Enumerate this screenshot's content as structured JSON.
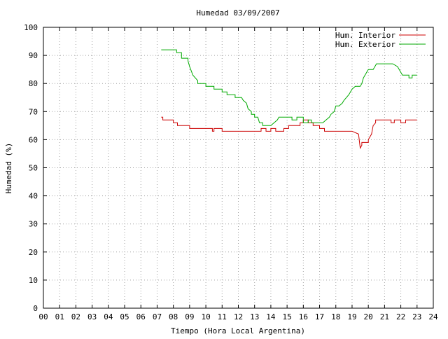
{
  "chart_data": {
    "type": "line",
    "title": "Humedad 03/09/2007",
    "xlabel": "Tiempo (Hora Local Argentina)",
    "ylabel": "Humedad (%)",
    "xlim": [
      0,
      24
    ],
    "ylim": [
      0,
      100
    ],
    "x_ticks": [
      "00",
      "01",
      "02",
      "03",
      "04",
      "05",
      "06",
      "07",
      "08",
      "09",
      "10",
      "11",
      "12",
      "13",
      "14",
      "15",
      "16",
      "17",
      "18",
      "19",
      "20",
      "21",
      "22",
      "23",
      "24"
    ],
    "y_ticks": [
      "0",
      "10",
      "20",
      "30",
      "40",
      "50",
      "60",
      "70",
      "80",
      "90",
      "100"
    ],
    "grid": true,
    "legend_position": "top-right",
    "series": [
      {
        "name": "Hum. Interior",
        "color": "#cc0000",
        "x": [
          7.25,
          7.35,
          7.35,
          7.45,
          7.45,
          8.0,
          8.0,
          8.25,
          8.25,
          8.5,
          8.5,
          9.0,
          9.0,
          9.6,
          9.6,
          10.4,
          10.4,
          10.5,
          10.5,
          11.0,
          11.0,
          11.6,
          11.6,
          12.4,
          12.4,
          13.0,
          13.0,
          13.4,
          13.4,
          13.7,
          13.7,
          14.0,
          14.0,
          14.3,
          14.3,
          14.8,
          14.8,
          15.1,
          15.1,
          15.4,
          15.4,
          15.8,
          15.8,
          16.0,
          16.0,
          16.3,
          16.3,
          16.6,
          16.6,
          17.0,
          17.0,
          17.3,
          17.3,
          19.0,
          19.0,
          19.4,
          19.5,
          19.6,
          19.6,
          20.0,
          20.0,
          20.2,
          20.3,
          20.45,
          20.45,
          21.4,
          21.4,
          21.6,
          21.6,
          22.0,
          22.0,
          22.3,
          22.3,
          22.7,
          22.7,
          23.0
        ],
        "y": [
          68,
          68,
          67,
          67,
          67,
          67,
          66,
          66,
          65,
          65,
          65,
          65,
          64,
          64,
          64,
          64,
          63,
          63,
          64,
          64,
          63,
          63,
          63,
          63,
          63,
          63,
          63,
          63,
          64,
          64,
          63,
          63,
          64,
          64,
          63,
          63,
          64,
          64,
          65,
          65,
          65,
          65,
          66,
          66,
          67,
          67,
          66,
          66,
          65,
          65,
          64,
          64,
          63,
          63,
          63,
          62,
          57,
          58,
          59,
          59,
          60,
          62,
          65,
          66,
          67,
          67,
          66,
          66,
          67,
          67,
          66,
          66,
          67,
          67,
          67,
          67
        ]
      },
      {
        "name": "Hum. Exterior",
        "color": "#00aa00",
        "x": [
          7.25,
          8.0,
          8.0,
          8.2,
          8.2,
          8.5,
          8.5,
          8.9,
          8.9,
          9.0,
          9.2,
          9.5,
          9.5,
          10.0,
          10.0,
          10.5,
          10.5,
          11.0,
          11.0,
          11.3,
          11.3,
          11.8,
          11.8,
          12.2,
          12.3,
          12.5,
          12.6,
          12.8,
          12.8,
          13.0,
          13.0,
          13.2,
          13.3,
          13.5,
          13.5,
          13.8,
          13.8,
          14.0,
          14.2,
          14.4,
          14.5,
          14.8,
          14.8,
          15.3,
          15.3,
          15.6,
          15.6,
          16.0,
          16.0,
          16.3,
          16.3,
          16.5,
          16.5,
          17.0,
          17.0,
          17.2,
          17.4,
          17.6,
          17.7,
          17.9,
          18.0,
          18.1,
          18.2,
          18.4,
          18.5,
          18.8,
          19.0,
          19.2,
          19.5,
          19.6,
          19.7,
          19.9,
          20.0,
          20.3,
          20.4,
          20.5,
          20.7,
          20.7,
          21.5,
          21.5,
          21.8,
          21.8,
          22.0,
          22.0,
          22.1,
          22.5,
          22.5,
          22.7,
          22.7,
          23.0
        ],
        "y": [
          92,
          92,
          92,
          92,
          91,
          91,
          89,
          89,
          88,
          86,
          83,
          81,
          80,
          80,
          79,
          79,
          78,
          78,
          77,
          77,
          76,
          76,
          75,
          75,
          74,
          73,
          71,
          70,
          69,
          69,
          68,
          68,
          66,
          66,
          65,
          65,
          65,
          65,
          66,
          67,
          68,
          68,
          68,
          68,
          67,
          67,
          68,
          68,
          66,
          66,
          67,
          67,
          66,
          66,
          66,
          66,
          67,
          68,
          69,
          70,
          72,
          72,
          72,
          73,
          74,
          76,
          78,
          79,
          79,
          80,
          82,
          84,
          85,
          85,
          86,
          87,
          87,
          87,
          87,
          87,
          86,
          86,
          84,
          84,
          83,
          83,
          82,
          82,
          83,
          83
        ]
      }
    ]
  }
}
